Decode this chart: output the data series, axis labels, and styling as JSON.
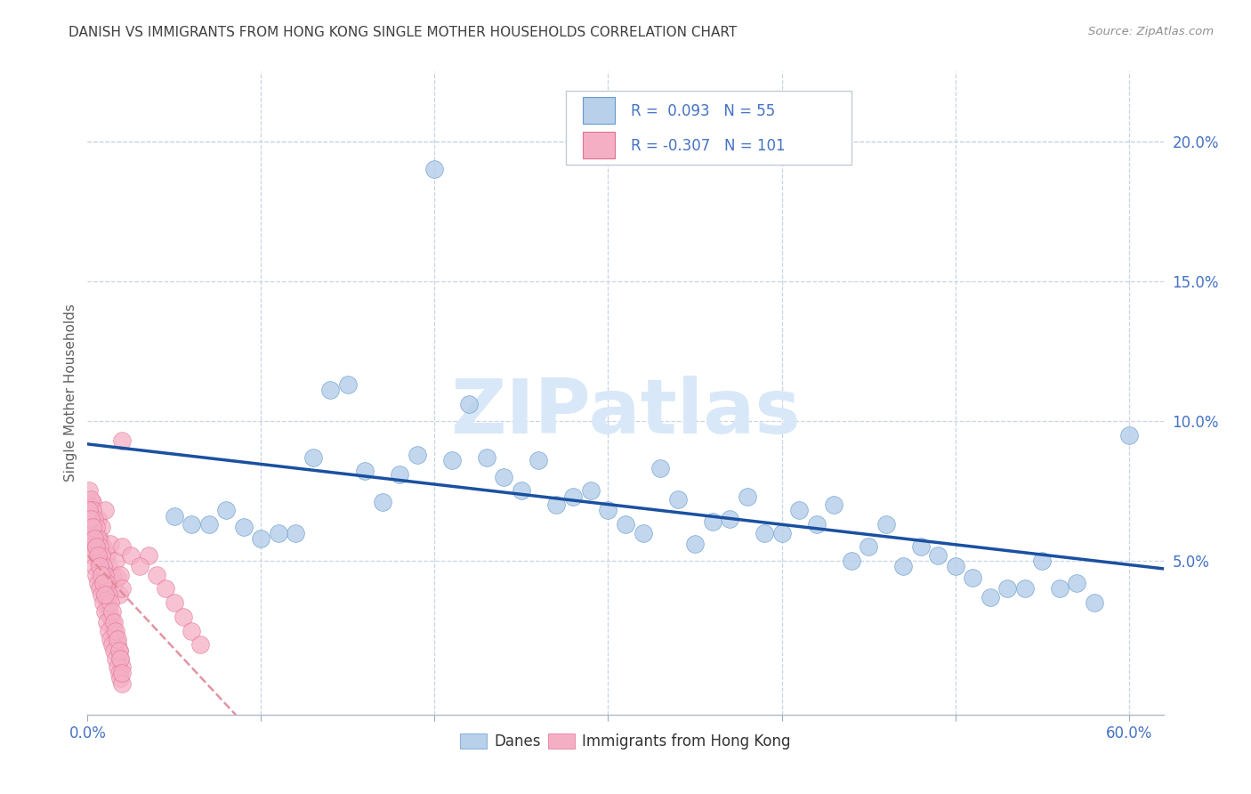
{
  "title": "DANISH VS IMMIGRANTS FROM HONG KONG SINGLE MOTHER HOUSEHOLDS CORRELATION CHART",
  "source": "Source: ZipAtlas.com",
  "ylabel": "Single Mother Households",
  "xlim": [
    0.0,
    0.62
  ],
  "ylim": [
    -0.005,
    0.225
  ],
  "yticks": [
    0.05,
    0.1,
    0.15,
    0.2
  ],
  "ytick_labels": [
    "5.0%",
    "10.0%",
    "15.0%",
    "20.0%"
  ],
  "xticks": [
    0.0,
    0.1,
    0.2,
    0.3,
    0.4,
    0.5,
    0.6
  ],
  "xtick_labels": [
    "0.0%",
    "",
    "",
    "",
    "",
    "",
    "60.0%"
  ],
  "danes_R": 0.093,
  "danes_N": 55,
  "hk_R": -0.307,
  "hk_N": 101,
  "blue_scatter_color": "#b8d0ea",
  "blue_edge_color": "#6699cc",
  "pink_scatter_color": "#f5afc5",
  "pink_edge_color": "#e07090",
  "blue_line_color": "#1a50a0",
  "pink_line_color": "#e08898",
  "legend_blue_color": "#4472c4",
  "legend_text_color": "#333333",
  "grid_color": "#c8d4e4",
  "title_color": "#404040",
  "source_color": "#909090",
  "watermark_color": "#d8e8f8",
  "danes_x": [
    0.2,
    0.22,
    0.09,
    0.33,
    0.14,
    0.18,
    0.19,
    0.21,
    0.26,
    0.29,
    0.3,
    0.38,
    0.35,
    0.4,
    0.42,
    0.43,
    0.44,
    0.27,
    0.32,
    0.36,
    0.45,
    0.46,
    0.48,
    0.5,
    0.51,
    0.07,
    0.1,
    0.12,
    0.15,
    0.17,
    0.23,
    0.25,
    0.28,
    0.31,
    0.34,
    0.37,
    0.41,
    0.47,
    0.49,
    0.52,
    0.55,
    0.58,
    0.16,
    0.13,
    0.39,
    0.24,
    0.08,
    0.11,
    0.53,
    0.56,
    0.06,
    0.57,
    0.05,
    0.6,
    0.54
  ],
  "danes_y": [
    0.19,
    0.106,
    0.062,
    0.083,
    0.111,
    0.081,
    0.088,
    0.086,
    0.086,
    0.075,
    0.068,
    0.073,
    0.056,
    0.06,
    0.063,
    0.07,
    0.05,
    0.07,
    0.06,
    0.064,
    0.055,
    0.063,
    0.055,
    0.048,
    0.044,
    0.063,
    0.058,
    0.06,
    0.113,
    0.071,
    0.087,
    0.075,
    0.073,
    0.063,
    0.072,
    0.065,
    0.068,
    0.048,
    0.052,
    0.037,
    0.05,
    0.035,
    0.082,
    0.087,
    0.06,
    0.08,
    0.068,
    0.06,
    0.04,
    0.04,
    0.063,
    0.042,
    0.066,
    0.095,
    0.04
  ],
  "hk_x": [
    0.001,
    0.002,
    0.003,
    0.004,
    0.005,
    0.006,
    0.007,
    0.008,
    0.009,
    0.01,
    0.011,
    0.012,
    0.013,
    0.014,
    0.015,
    0.016,
    0.017,
    0.018,
    0.019,
    0.02,
    0.001,
    0.002,
    0.003,
    0.004,
    0.005,
    0.006,
    0.007,
    0.008,
    0.009,
    0.01,
    0.011,
    0.012,
    0.013,
    0.014,
    0.015,
    0.016,
    0.017,
    0.018,
    0.019,
    0.02,
    0.001,
    0.002,
    0.003,
    0.004,
    0.005,
    0.006,
    0.007,
    0.008,
    0.009,
    0.01,
    0.011,
    0.012,
    0.013,
    0.014,
    0.015,
    0.016,
    0.017,
    0.018,
    0.019,
    0.02,
    0.001,
    0.002,
    0.003,
    0.004,
    0.005,
    0.006,
    0.007,
    0.008,
    0.009,
    0.01,
    0.011,
    0.012,
    0.013,
    0.014,
    0.015,
    0.016,
    0.017,
    0.018,
    0.019,
    0.02,
    0.001,
    0.002,
    0.003,
    0.004,
    0.005,
    0.006,
    0.007,
    0.008,
    0.009,
    0.01,
    0.035,
    0.04,
    0.045,
    0.05,
    0.055,
    0.06,
    0.065,
    0.02,
    0.025,
    0.03,
    0.02
  ],
  "hk_y": [
    0.062,
    0.058,
    0.071,
    0.055,
    0.06,
    0.065,
    0.058,
    0.062,
    0.055,
    0.068,
    0.052,
    0.048,
    0.056,
    0.045,
    0.042,
    0.05,
    0.044,
    0.038,
    0.045,
    0.04,
    0.07,
    0.065,
    0.06,
    0.058,
    0.055,
    0.05,
    0.048,
    0.045,
    0.042,
    0.038,
    0.035,
    0.032,
    0.03,
    0.028,
    0.025,
    0.022,
    0.02,
    0.018,
    0.015,
    0.012,
    0.058,
    0.055,
    0.052,
    0.048,
    0.045,
    0.042,
    0.04,
    0.038,
    0.035,
    0.032,
    0.028,
    0.025,
    0.022,
    0.02,
    0.018,
    0.015,
    0.012,
    0.01,
    0.008,
    0.006,
    0.075,
    0.072,
    0.068,
    0.065,
    0.062,
    0.058,
    0.055,
    0.052,
    0.048,
    0.045,
    0.042,
    0.038,
    0.035,
    0.032,
    0.028,
    0.025,
    0.022,
    0.018,
    0.015,
    0.01,
    0.068,
    0.065,
    0.062,
    0.058,
    0.055,
    0.052,
    0.048,
    0.045,
    0.042,
    0.038,
    0.052,
    0.045,
    0.04,
    0.035,
    0.03,
    0.025,
    0.02,
    0.055,
    0.052,
    0.048,
    0.093
  ]
}
